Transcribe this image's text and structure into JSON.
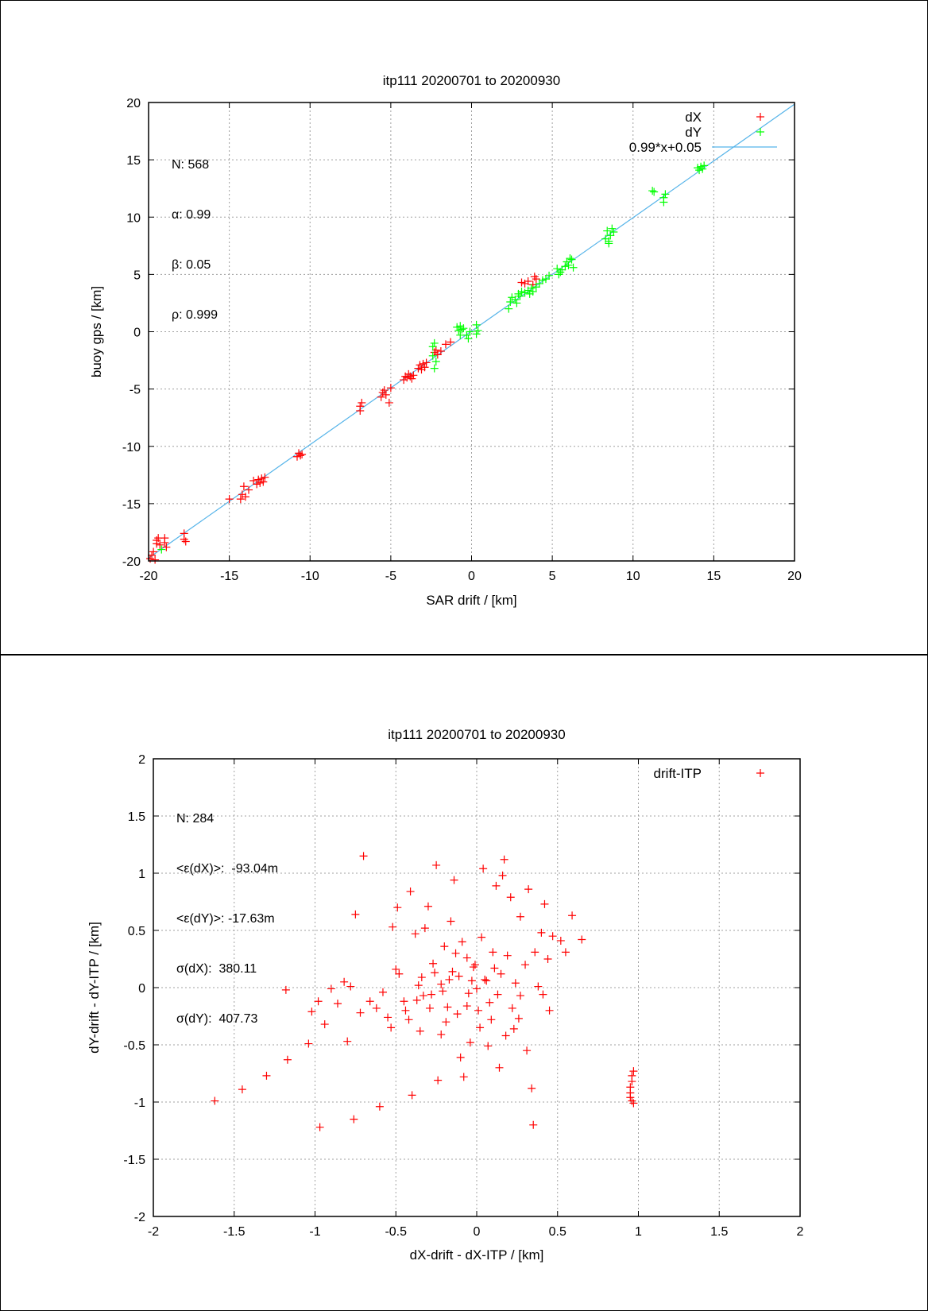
{
  "charts": [
    {
      "id": "top",
      "type": "scatter",
      "title": "itp111 20200701 to 20200930",
      "xlabel": "SAR drift / [km]",
      "ylabel": "buoy gps / [km]",
      "xlim": [
        -20,
        20
      ],
      "ylim": [
        -20,
        20
      ],
      "xticks": [
        "-20",
        "-15",
        "-10",
        "-5",
        "0",
        "5",
        "10",
        "15",
        "20"
      ],
      "yticks": [
        "-20",
        "-15",
        "-10",
        "-5",
        "0",
        "5",
        "10",
        "15",
        "20"
      ],
      "grid": true,
      "legend_position": "top-right",
      "stats": [
        "N: 568",
        "α: 0.99",
        "β: 0.05",
        "ρ: 0.999"
      ],
      "legend": [
        {
          "label": "dX",
          "color": "#ff0000",
          "marker": "plus"
        },
        {
          "label": "dY",
          "color": "#00ff00",
          "marker": "plus"
        },
        {
          "label": "0.99*x+0.05",
          "color": "#56b4e9",
          "marker": "line"
        }
      ],
      "fit": {
        "slope": 0.99,
        "intercept": 0.05
      },
      "series": [
        {
          "name": "dX",
          "color": "#ff0000",
          "points": [
            [
              -19.9,
              -19.8
            ],
            [
              -19.8,
              -19.5
            ],
            [
              -19.7,
              -19.2
            ],
            [
              -19.6,
              -19.9
            ],
            [
              -19.5,
              -18.5
            ],
            [
              -19.5,
              -18.2
            ],
            [
              -19.4,
              -18.0
            ],
            [
              -19.3,
              -18.6
            ],
            [
              -19.0,
              -18.0
            ],
            [
              -19.0,
              -18.4
            ],
            [
              -18.9,
              -18.8
            ],
            [
              -17.8,
              -17.6
            ],
            [
              -17.8,
              -18.1
            ],
            [
              -17.7,
              -18.3
            ],
            [
              -15.0,
              -14.6
            ],
            [
              -14.3,
              -14.6
            ],
            [
              -14.2,
              -14.2
            ],
            [
              -14.1,
              -13.5
            ],
            [
              -14.0,
              -14.4
            ],
            [
              -13.8,
              -13.8
            ],
            [
              -13.5,
              -13.0
            ],
            [
              -13.3,
              -13.3
            ],
            [
              -13.2,
              -12.9
            ],
            [
              -13.1,
              -13.2
            ],
            [
              -13.0,
              -12.8
            ],
            [
              -12.9,
              -13.1
            ],
            [
              -12.8,
              -12.7
            ],
            [
              -10.8,
              -10.9
            ],
            [
              -10.7,
              -10.6
            ],
            [
              -10.6,
              -10.8
            ],
            [
              -10.5,
              -10.7
            ],
            [
              -6.9,
              -6.9
            ],
            [
              -6.9,
              -6.5
            ],
            [
              -6.8,
              -6.2
            ],
            [
              -5.6,
              -5.7
            ],
            [
              -5.5,
              -5.3
            ],
            [
              -5.4,
              -5.1
            ],
            [
              -5.3,
              -5.5
            ],
            [
              -5.1,
              -6.2
            ],
            [
              -5.0,
              -4.9
            ],
            [
              -4.2,
              -4.2
            ],
            [
              -4.1,
              -3.9
            ],
            [
              -4.0,
              -4.0
            ],
            [
              -3.9,
              -3.7
            ],
            [
              -3.8,
              -3.9
            ],
            [
              -3.7,
              -4.1
            ],
            [
              -3.6,
              -3.8
            ],
            [
              -3.3,
              -3.2
            ],
            [
              -3.2,
              -2.9
            ],
            [
              -3.1,
              -3.3
            ],
            [
              -3.0,
              -2.8
            ],
            [
              -2.9,
              -3.1
            ],
            [
              -2.8,
              -2.7
            ],
            [
              -2.3,
              -1.8
            ],
            [
              -2.2,
              -1.6
            ],
            [
              -2.1,
              -2.0
            ],
            [
              -1.9,
              -1.7
            ],
            [
              -1.6,
              -1.1
            ],
            [
              -1.3,
              -0.9
            ],
            [
              3.1,
              4.3
            ],
            [
              3.3,
              4.2
            ],
            [
              3.5,
              4.4
            ],
            [
              3.8,
              4.1
            ],
            [
              3.9,
              4.8
            ],
            [
              4.0,
              4.6
            ]
          ]
        },
        {
          "name": "dY",
          "color": "#00ff00",
          "points": [
            [
              -19.2,
              -19.0
            ],
            [
              -2.4,
              -2.1
            ],
            [
              -2.4,
              -1.3
            ],
            [
              -2.3,
              -1.0
            ],
            [
              -2.3,
              -3.2
            ],
            [
              -2.2,
              -2.6
            ],
            [
              -0.9,
              0.4
            ],
            [
              -0.8,
              0.1
            ],
            [
              -0.7,
              -0.3
            ],
            [
              -0.7,
              0.5
            ],
            [
              -0.6,
              0.2
            ],
            [
              -0.5,
              0.3
            ],
            [
              -0.3,
              -0.3
            ],
            [
              -0.2,
              -0.6
            ],
            [
              -0.1,
              0.0
            ],
            [
              0.3,
              0.6
            ],
            [
              0.4,
              0.1
            ],
            [
              0.3,
              -0.2
            ],
            [
              2.3,
              2.0
            ],
            [
              2.4,
              2.6
            ],
            [
              2.5,
              3.0
            ],
            [
              2.7,
              2.8
            ],
            [
              2.8,
              2.5
            ],
            [
              2.9,
              3.3
            ],
            [
              3.0,
              3.1
            ],
            [
              3.1,
              3.5
            ],
            [
              3.3,
              3.4
            ],
            [
              3.5,
              3.6
            ],
            [
              3.6,
              3.3
            ],
            [
              3.7,
              3.8
            ],
            [
              3.8,
              3.5
            ],
            [
              4.0,
              3.9
            ],
            [
              4.2,
              4.2
            ],
            [
              4.4,
              4.5
            ],
            [
              4.6,
              4.6
            ],
            [
              4.8,
              4.9
            ],
            [
              5.3,
              5.5
            ],
            [
              5.4,
              5.0
            ],
            [
              5.5,
              5.2
            ],
            [
              5.6,
              5.4
            ],
            [
              5.8,
              5.7
            ],
            [
              5.9,
              6.1
            ],
            [
              6.0,
              5.8
            ],
            [
              6.1,
              6.4
            ],
            [
              6.2,
              6.3
            ],
            [
              6.3,
              5.6
            ],
            [
              8.3,
              8.1
            ],
            [
              8.4,
              8.8
            ],
            [
              8.5,
              7.7
            ],
            [
              8.5,
              7.9
            ],
            [
              8.6,
              8.4
            ],
            [
              8.7,
              9.0
            ],
            [
              8.8,
              8.7
            ],
            [
              11.2,
              12.3
            ],
            [
              11.3,
              12.2
            ],
            [
              11.9,
              11.3
            ],
            [
              11.9,
              11.7
            ],
            [
              12.0,
              12.0
            ],
            [
              14.0,
              14.3
            ],
            [
              14.1,
              14.1
            ],
            [
              14.2,
              14.4
            ],
            [
              14.3,
              14.2
            ],
            [
              14.4,
              14.5
            ]
          ]
        }
      ]
    },
    {
      "id": "bottom",
      "type": "scatter",
      "title": "itp111 20200701 to 20200930",
      "xlabel": "dX-drift - dX-ITP / [km]",
      "ylabel": "dY-drift - dY-ITP / [km]",
      "xlim": [
        -2,
        2
      ],
      "ylim": [
        -2,
        2
      ],
      "xticks": [
        "-2",
        "-1.5",
        "-1",
        "-0.5",
        "0",
        "0.5",
        "1",
        "1.5",
        "2"
      ],
      "yticks": [
        "-2",
        "-1.5",
        "-1",
        "-0.5",
        "0",
        "0.5",
        "1",
        "1.5",
        "2"
      ],
      "grid": true,
      "legend_position": "top-right",
      "stats": [
        "N: 284",
        "<ε(dX)>:  -93.04m",
        "<ε(dY)>: -17.63m",
        "σ(dX):  380.11",
        "σ(dY):  407.73"
      ],
      "legend": [
        {
          "label": "drift-ITP",
          "color": "#ff0000",
          "marker": "plus"
        }
      ],
      "series": [
        {
          "name": "drift-ITP",
          "color": "#ff0000",
          "points": [
            [
              -1.62,
              -0.99
            ],
            [
              -1.45,
              -0.89
            ],
            [
              -1.3,
              -0.77
            ],
            [
              -1.17,
              -0.63
            ],
            [
              -1.18,
              -0.02
            ],
            [
              -1.04,
              -0.49
            ],
            [
              -0.97,
              -1.22
            ],
            [
              -0.94,
              -0.32
            ],
            [
              -1.02,
              -0.21
            ],
            [
              -0.98,
              -0.12
            ],
            [
              -0.9,
              -0.01
            ],
            [
              -0.86,
              -0.14
            ],
            [
              -0.82,
              0.05
            ],
            [
              -0.8,
              -0.47
            ],
            [
              -0.76,
              -1.15
            ],
            [
              -0.72,
              -0.22
            ],
            [
              -0.7,
              1.15
            ],
            [
              -0.75,
              0.64
            ],
            [
              -0.78,
              0.01
            ],
            [
              -0.6,
              -1.04
            ],
            [
              -0.58,
              -0.04
            ],
            [
              -0.53,
              -0.35
            ],
            [
              -0.49,
              0.7
            ],
            [
              -0.4,
              -0.94
            ],
            [
              -0.41,
              0.84
            ],
            [
              -0.52,
              0.53
            ],
            [
              -0.48,
              0.12
            ],
            [
              -0.45,
              -0.12
            ],
            [
              -0.42,
              -0.28
            ],
            [
              -0.38,
              0.47
            ],
            [
              -0.36,
              0.02
            ],
            [
              -0.33,
              -0.07
            ],
            [
              -0.3,
              0.71
            ],
            [
              -0.27,
              0.21
            ],
            [
              -0.25,
              1.07
            ],
            [
              -0.22,
              -0.41
            ],
            [
              -0.24,
              -0.81
            ],
            [
              -0.2,
              0.36
            ],
            [
              -0.18,
              -0.17
            ],
            [
              -0.16,
              0.58
            ],
            [
              -0.14,
              0.94
            ],
            [
              -0.12,
              -0.23
            ],
            [
              -0.11,
              0.1
            ],
            [
              -0.1,
              -0.61
            ],
            [
              -0.08,
              -0.78
            ],
            [
              -0.06,
              0.26
            ],
            [
              -0.05,
              -0.05
            ],
            [
              -0.04,
              -0.48
            ],
            [
              -0.02,
              0.18
            ],
            [
              0.0,
              -0.01
            ],
            [
              0.02,
              -0.35
            ],
            [
              0.03,
              0.44
            ],
            [
              0.04,
              1.04
            ],
            [
              0.05,
              0.07
            ],
            [
              0.07,
              -0.51
            ],
            [
              0.08,
              -0.13
            ],
            [
              0.1,
              0.31
            ],
            [
              0.12,
              0.89
            ],
            [
              0.14,
              -0.7
            ],
            [
              0.15,
              0.12
            ],
            [
              0.16,
              0.98
            ],
            [
              0.17,
              1.12
            ],
            [
              0.18,
              -0.42
            ],
            [
              0.19,
              0.28
            ],
            [
              0.21,
              0.79
            ],
            [
              0.22,
              -0.18
            ],
            [
              0.24,
              0.04
            ],
            [
              0.26,
              -0.27
            ],
            [
              0.27,
              0.62
            ],
            [
              0.3,
              0.2
            ],
            [
              0.31,
              -0.55
            ],
            [
              0.32,
              0.86
            ],
            [
              0.34,
              -0.88
            ],
            [
              0.35,
              -1.2
            ],
            [
              0.36,
              0.31
            ],
            [
              0.38,
              0.01
            ],
            [
              0.4,
              0.48
            ],
            [
              0.42,
              0.73
            ],
            [
              0.44,
              0.25
            ],
            [
              0.47,
              0.45
            ],
            [
              0.52,
              0.41
            ],
            [
              0.55,
              0.31
            ],
            [
              0.59,
              0.63
            ],
            [
              0.65,
              0.42
            ],
            [
              0.45,
              -0.2
            ],
            [
              0.41,
              -0.06
            ],
            [
              0.27,
              -0.07
            ],
            [
              0.23,
              -0.36
            ],
            [
              -0.15,
              0.14
            ],
            [
              -0.28,
              -0.06
            ],
            [
              -0.32,
              0.52
            ],
            [
              -0.35,
              -0.38
            ],
            [
              -0.22,
              0.03
            ],
            [
              -0.19,
              -0.3
            ],
            [
              -0.09,
              0.4
            ],
            [
              -0.01,
              0.2
            ],
            [
              0.06,
              0.06
            ],
            [
              0.09,
              -0.28
            ],
            [
              0.11,
              0.17
            ],
            [
              0.13,
              -0.06
            ],
            [
              0.01,
              -0.2
            ],
            [
              -0.03,
              0.06
            ],
            [
              -0.06,
              -0.16
            ],
            [
              -0.13,
              0.3
            ],
            [
              -0.17,
              0.07
            ],
            [
              -0.21,
              -0.03
            ],
            [
              -0.26,
              0.13
            ],
            [
              -0.29,
              -0.18
            ],
            [
              -0.34,
              0.09
            ],
            [
              -0.37,
              -0.11
            ],
            [
              -0.44,
              -0.2
            ],
            [
              -0.5,
              0.16
            ],
            [
              -0.55,
              -0.26
            ],
            [
              -0.62,
              -0.18
            ],
            [
              -0.66,
              -0.12
            ],
            [
              0.97,
              -0.73
            ],
            [
              0.96,
              -0.77
            ],
            [
              0.96,
              -0.82
            ],
            [
              0.95,
              -0.87
            ],
            [
              0.95,
              -0.92
            ],
            [
              0.95,
              -0.96
            ],
            [
              0.96,
              -0.99
            ],
            [
              0.97,
              -1.01
            ]
          ]
        }
      ]
    }
  ]
}
